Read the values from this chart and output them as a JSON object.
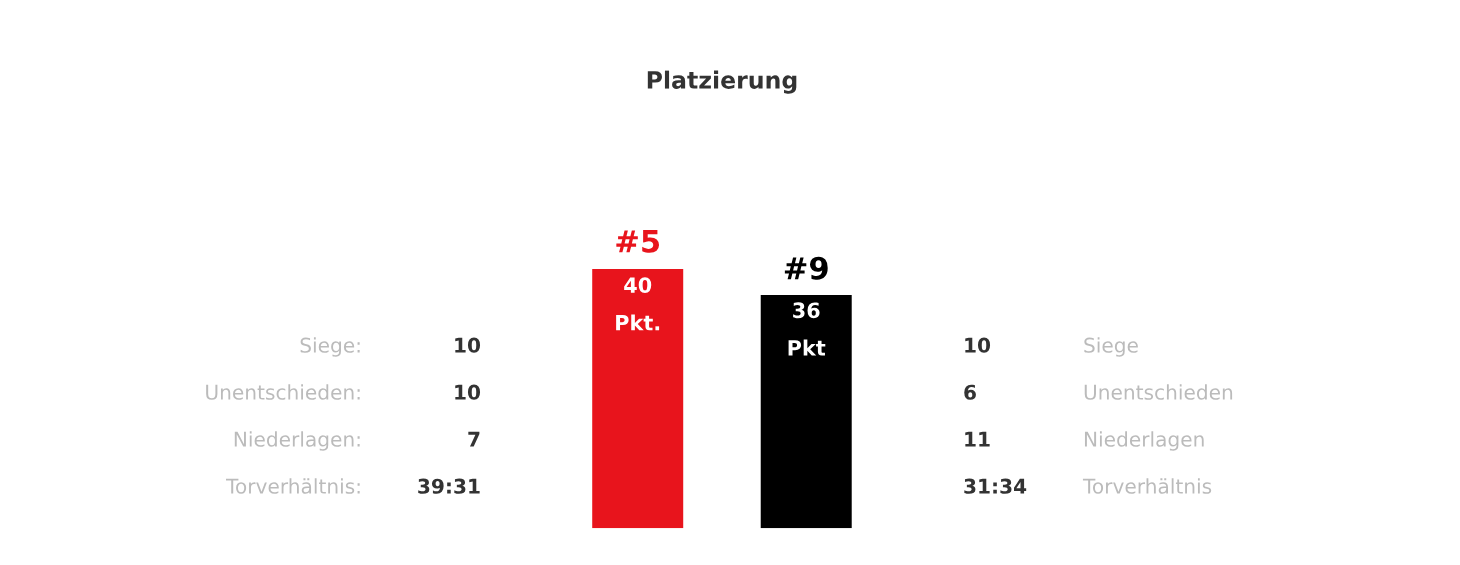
{
  "chart_data": [
    {
      "type": "other",
      "annotations": [
        "Siege:",
        "10",
        "Unentschieden:",
        "10",
        "Niederlagen:",
        "7",
        "Torverhältnis:",
        "39:31"
      ]
    },
    {
      "type": "bar",
      "title": "Platzierung",
      "categories": [
        null,
        null
      ],
      "values": [
        40,
        36
      ],
      "colors": [
        "#e8141c",
        "#000000"
      ],
      "value_labels": [
        "40\nPkt.",
        "36\nPkt"
      ],
      "annotations": [
        "#5",
        "#9"
      ]
    },
    {
      "type": "other",
      "annotations": [
        "Siege",
        "10",
        "Unentschieden",
        "6",
        "Niederlagen",
        "11",
        "Torverhältnis",
        "31:34"
      ]
    }
  ]
}
